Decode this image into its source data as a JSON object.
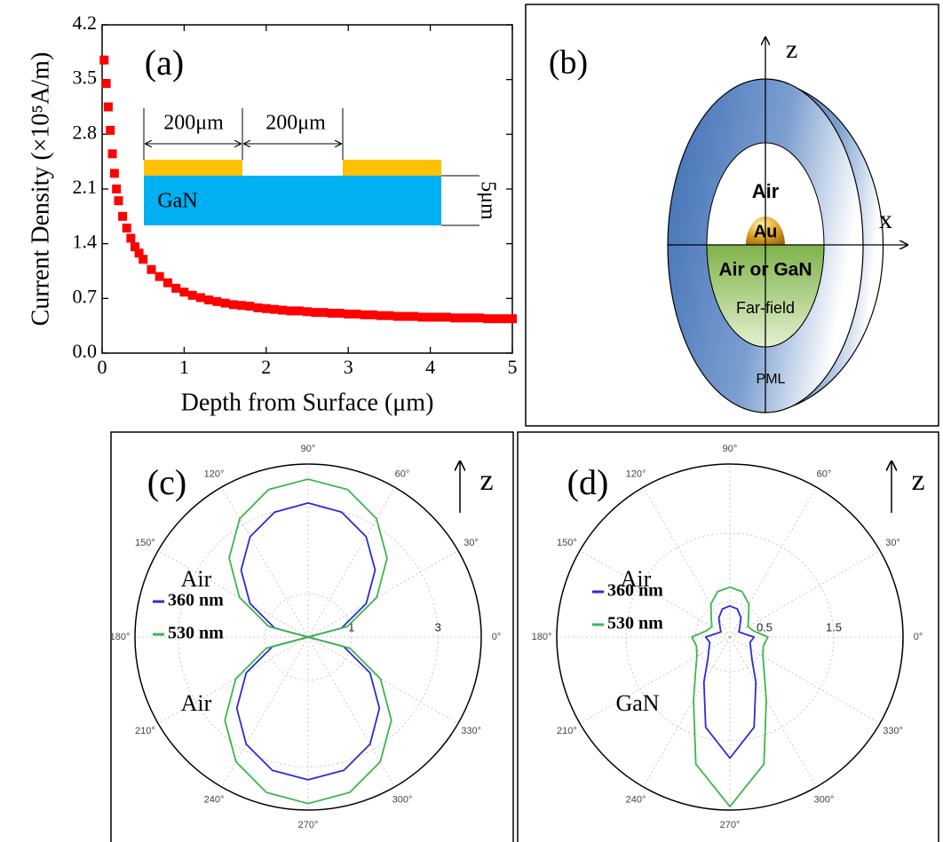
{
  "chart_data": [
    {
      "type": "scatter",
      "label": "(a)",
      "xlabel": "Depth from Surface (μm)",
      "ylabel": "Current Density (×10⁵A/m)",
      "x": [
        0.025,
        0.05,
        0.075,
        0.1,
        0.125,
        0.15,
        0.175,
        0.2,
        0.25,
        0.3,
        0.35,
        0.4,
        0.45,
        0.5,
        0.6,
        0.7,
        0.8,
        0.9,
        1.0,
        1.1,
        1.2,
        1.3,
        1.4,
        1.5,
        1.6,
        1.7,
        1.8,
        1.9,
        2.0,
        2.1,
        2.2,
        2.3,
        2.4,
        2.5,
        2.6,
        2.7,
        2.8,
        2.9,
        3.0,
        3.1,
        3.2,
        3.3,
        3.4,
        3.5,
        3.6,
        3.7,
        3.8,
        3.9,
        4.0,
        4.1,
        4.2,
        4.3,
        4.4,
        4.5,
        4.6,
        4.7,
        4.8,
        4.9,
        5.0
      ],
      "values": [
        3.75,
        3.45,
        3.15,
        2.85,
        2.55,
        2.3,
        2.1,
        1.95,
        1.75,
        1.6,
        1.47,
        1.36,
        1.28,
        1.2,
        1.07,
        0.98,
        0.9,
        0.83,
        0.78,
        0.74,
        0.71,
        0.68,
        0.66,
        0.64,
        0.62,
        0.61,
        0.6,
        0.58,
        0.57,
        0.56,
        0.55,
        0.54,
        0.54,
        0.53,
        0.52,
        0.52,
        0.51,
        0.51,
        0.5,
        0.5,
        0.49,
        0.49,
        0.48,
        0.48,
        0.47,
        0.47,
        0.47,
        0.46,
        0.46,
        0.46,
        0.46,
        0.45,
        0.45,
        0.45,
        0.45,
        0.44,
        0.44,
        0.44,
        0.44
      ],
      "color": "#ff0000",
      "xlim": [
        0,
        5
      ],
      "ylim": [
        0,
        4.2
      ],
      "xticks": [
        0,
        1,
        2,
        3,
        4,
        5
      ],
      "yticks": [
        {
          "value": 0,
          "label": "0.0"
        },
        0.7,
        1.4,
        2.1,
        2.8,
        3.5,
        4.2
      ],
      "annotations": [
        "200μm",
        "200μm",
        "GaN",
        "5μm"
      ]
    },
    {
      "type": "polar",
      "label": "(c)",
      "axis_label": "z",
      "rlim": [
        0,
        4
      ],
      "rticks": [
        1,
        3
      ],
      "thetaticks": [
        {
          "value": 0,
          "label": "0°"
        },
        {
          "value": 30,
          "label": "30°"
        },
        {
          "value": 60,
          "label": "60°"
        },
        {
          "value": 90,
          "label": "90°"
        },
        {
          "value": 120,
          "label": "120°"
        },
        {
          "value": 150,
          "label": "150°"
        },
        {
          "value": 180,
          "label": "180°"
        },
        {
          "value": 210,
          "label": "210°"
        },
        {
          "value": 240,
          "label": "240°"
        },
        {
          "value": 270,
          "label": "270°"
        },
        {
          "value": 300,
          "label": "300°"
        },
        {
          "value": 330,
          "label": "330°"
        }
      ],
      "theta": [
        0,
        15,
        30,
        45,
        60,
        75,
        90,
        105,
        120,
        135,
        150,
        165,
        180,
        195,
        210,
        225,
        240,
        255,
        270,
        285,
        300,
        315,
        330,
        345
      ],
      "series": [
        {
          "name": "360 nm",
          "color": "#2b2bd6",
          "values": [
            0,
            0.8,
            1.55,
            2.19,
            2.68,
            2.99,
            3.1,
            2.99,
            2.68,
            2.19,
            1.55,
            0.8,
            0,
            0.85,
            1.65,
            2.33,
            2.86,
            3.19,
            3.3,
            3.19,
            2.86,
            2.33,
            1.65,
            0.85
          ]
        },
        {
          "name": "530 nm",
          "color": "#3cb54a",
          "values": [
            0,
            0.94,
            1.83,
            2.58,
            3.16,
            3.53,
            3.65,
            3.53,
            3.16,
            2.58,
            1.83,
            0.94,
            0,
            1.0,
            1.93,
            2.72,
            3.33,
            3.72,
            3.85,
            3.72,
            3.33,
            2.72,
            1.93,
            1.0
          ]
        }
      ],
      "annotations": [
        "Air",
        "Air"
      ]
    },
    {
      "type": "polar",
      "label": "(d)",
      "axis_label": "z",
      "rlim": [
        0,
        2.5
      ],
      "rticks": [
        0.5,
        1.5
      ],
      "thetaticks": [
        {
          "value": 0,
          "label": "0°"
        },
        {
          "value": 30,
          "label": "30°"
        },
        {
          "value": 60,
          "label": "60°"
        },
        {
          "value": 90,
          "label": "90°"
        },
        {
          "value": 120,
          "label": "120°"
        },
        {
          "value": 150,
          "label": "150°"
        },
        {
          "value": 180,
          "label": "180°"
        },
        {
          "value": 210,
          "label": "210°"
        },
        {
          "value": 240,
          "label": "240°"
        },
        {
          "value": 270,
          "label": "270°"
        },
        {
          "value": 300,
          "label": "300°"
        },
        {
          "value": 330,
          "label": "330°"
        }
      ],
      "theta": [
        0,
        15,
        30,
        45,
        60,
        75,
        90,
        105,
        120,
        135,
        150,
        165,
        180,
        195,
        210,
        225,
        240,
        255,
        270,
        285,
        300,
        315,
        330,
        345
      ],
      "series": [
        {
          "name": "360 nm",
          "color": "#2b2bd6",
          "values": [
            0.35,
            0.2,
            0.15,
            0.2,
            0.32,
            0.42,
            0.45,
            0.42,
            0.32,
            0.2,
            0.15,
            0.2,
            0.35,
            0.3,
            0.35,
            0.45,
            0.75,
            1.35,
            1.75,
            1.35,
            0.75,
            0.45,
            0.35,
            0.3
          ]
        },
        {
          "name": "530 nm",
          "color": "#3cb54a",
          "values": [
            0.55,
            0.35,
            0.3,
            0.38,
            0.55,
            0.68,
            0.72,
            0.68,
            0.55,
            0.38,
            0.3,
            0.35,
            0.55,
            0.5,
            0.55,
            0.7,
            1.05,
            1.9,
            2.45,
            1.9,
            1.05,
            0.7,
            0.55,
            0.5
          ]
        }
      ],
      "annotations": [
        "Air",
        "GaN"
      ]
    }
  ],
  "diagram": {
    "label": "(b)",
    "axes": [
      "z",
      "x"
    ],
    "regions": [
      "Air",
      "Au",
      "Air or GaN",
      "Far-field",
      "PML"
    ]
  }
}
